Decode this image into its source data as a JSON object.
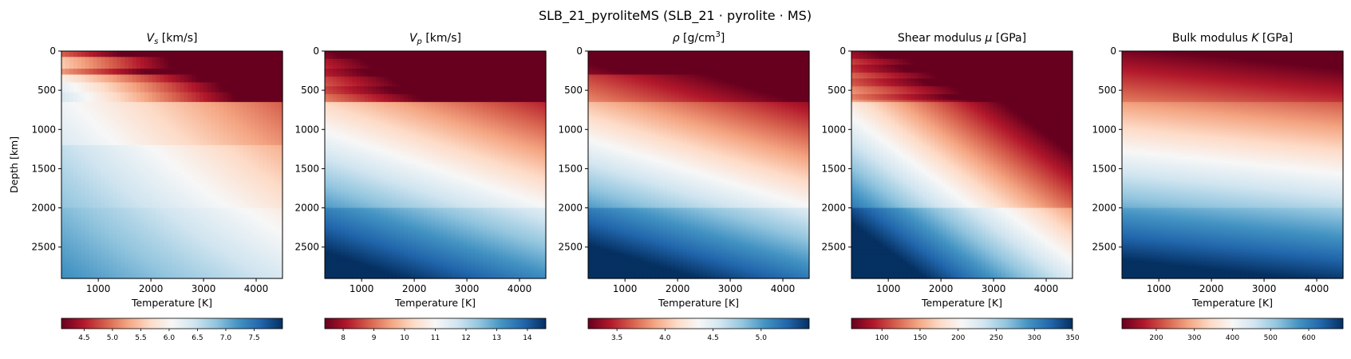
{
  "figure": {
    "suptitle": "SLB_21_pyroliteMS   (SLB_21 · pyrolite · MS)"
  },
  "colormap": {
    "name": "RdBu",
    "stops": [
      "#67001f",
      "#b2182b",
      "#d6604d",
      "#f4a582",
      "#fddbc7",
      "#f7f7f7",
      "#d1e5f0",
      "#92c5de",
      "#4393c3",
      "#2166ac",
      "#053061"
    ]
  },
  "chart_data": [
    {
      "type": "heatmap",
      "title_main": "V",
      "title_sub": "s",
      "title_rest": " [km/s]",
      "xlabel": "Temperature [K]",
      "ylabel": "Depth [km]",
      "xlim": [
        300,
        4500
      ],
      "ylim": [
        2900,
        0
      ],
      "xticks": [
        1000,
        2000,
        3000,
        4000
      ],
      "yticks": [
        0,
        500,
        1000,
        1500,
        2000,
        2500
      ],
      "layer_boundaries_km": [
        80,
        220,
        300,
        410,
        520,
        660,
        1200,
        2000
      ],
      "colorbar": {
        "range": [
          4.1,
          8.0
        ],
        "ticks": [
          4.5,
          5.0,
          5.5,
          6.0,
          6.5,
          7.0,
          7.5
        ],
        "tick_labels": [
          "4.5",
          "5.0",
          "5.5",
          "6.0",
          "6.5",
          "7.0",
          "7.5"
        ]
      }
    },
    {
      "type": "heatmap",
      "title_main": "V",
      "title_sub": "p",
      "title_rest": " [km/s]",
      "xlabel": "Temperature [K]",
      "ylabel": "",
      "xlim": [
        300,
        4500
      ],
      "ylim": [
        2900,
        0
      ],
      "xticks": [
        1000,
        2000,
        3000,
        4000
      ],
      "yticks": [
        0,
        500,
        1000,
        1500,
        2000,
        2500
      ],
      "layer_boundaries_km": [
        80,
        220,
        300,
        410,
        520,
        660,
        1200,
        2000
      ],
      "colorbar": {
        "range": [
          7.4,
          14.6
        ],
        "ticks": [
          8,
          9,
          10,
          11,
          12,
          13,
          14
        ],
        "tick_labels": [
          "8",
          "9",
          "10",
          "11",
          "12",
          "13",
          "14"
        ]
      }
    },
    {
      "type": "heatmap",
      "title_main": "ρ",
      "title_sub": "",
      "title_rest": " [g/cm",
      "title_sup": "3",
      "title_end": "]",
      "xlabel": "Temperature [K]",
      "ylabel": "",
      "xlim": [
        300,
        4500
      ],
      "ylim": [
        2900,
        0
      ],
      "xticks": [
        1000,
        2000,
        3000,
        4000
      ],
      "yticks": [
        0,
        500,
        1000,
        1500,
        2000,
        2500
      ],
      "layer_boundaries_km": [
        80,
        220,
        300,
        410,
        520,
        660,
        1200,
        2000
      ],
      "colorbar": {
        "range": [
          3.2,
          5.5
        ],
        "ticks": [
          3.5,
          4.0,
          4.5,
          5.0
        ],
        "tick_labels": [
          "3.5",
          "4.0",
          "4.5",
          "5.0"
        ]
      }
    },
    {
      "type": "heatmap",
      "title_main": "Shear modulus ",
      "title_sub": "",
      "title_italic": "μ",
      "title_rest": " [GPa]",
      "xlabel": "Temperature [K]",
      "ylabel": "",
      "xlim": [
        300,
        4500
      ],
      "ylim": [
        2900,
        0
      ],
      "xticks": [
        1000,
        2000,
        3000,
        4000
      ],
      "yticks": [
        0,
        500,
        1000,
        1500,
        2000,
        2500
      ],
      "layer_boundaries_km": [
        80,
        220,
        300,
        410,
        520,
        660,
        1200,
        2000
      ],
      "colorbar": {
        "range": [
          60,
          350
        ],
        "ticks": [
          100,
          150,
          200,
          250,
          300,
          350
        ],
        "tick_labels": [
          "100",
          "150",
          "200",
          "250",
          "300",
          "350"
        ]
      }
    },
    {
      "type": "heatmap",
      "title_main": "Bulk modulus ",
      "title_sub": "",
      "title_italic": "K",
      "title_rest": " [GPa]",
      "xlabel": "Temperature [K]",
      "ylabel": "",
      "xlim": [
        300,
        4500
      ],
      "ylim": [
        2900,
        0
      ],
      "xticks": [
        1000,
        2000,
        3000,
        4000
      ],
      "yticks": [
        0,
        500,
        1000,
        1500,
        2000,
        2500
      ],
      "layer_boundaries_km": [
        80,
        220,
        300,
        410,
        520,
        660,
        1200,
        2000
      ],
      "colorbar": {
        "range": [
          110,
          690
        ],
        "ticks": [
          200,
          300,
          400,
          500,
          600
        ],
        "tick_labels": [
          "200",
          "300",
          "400",
          "500",
          "600"
        ]
      }
    }
  ]
}
